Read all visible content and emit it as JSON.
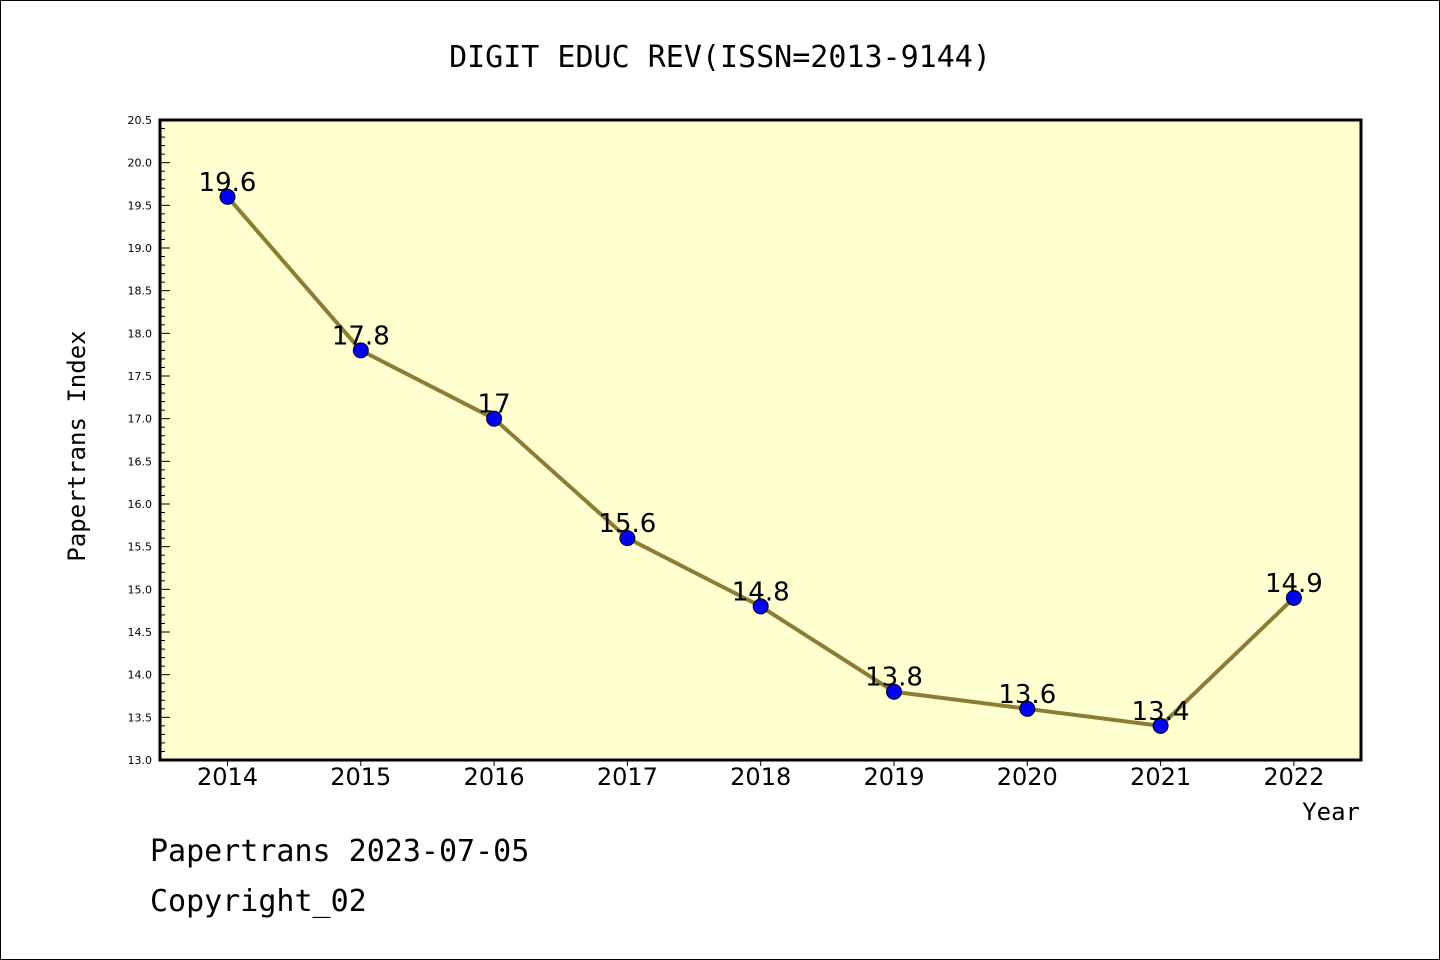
{
  "chart_data": {
    "type": "line",
    "title": "DIGIT EDUC REV(ISSN=2013-9144)",
    "xlabel": "Year",
    "ylabel": "Papertrans Index",
    "categories": [
      "2014",
      "2015",
      "2016",
      "2017",
      "2018",
      "2019",
      "2020",
      "2021",
      "2022"
    ],
    "values": [
      19.6,
      17.8,
      17,
      15.6,
      14.8,
      13.8,
      13.6,
      13.4,
      14.9
    ],
    "data_labels": [
      "19.6",
      "17.8",
      "17",
      "15.6",
      "14.8",
      "13.8",
      "13.6",
      "13.4",
      "14.9"
    ],
    "ylim": [
      13.0,
      20.5
    ],
    "yticks": [
      "13.0",
      "13.5",
      "14.0",
      "14.5",
      "15.0",
      "15.5",
      "16.0",
      "16.5",
      "17.0",
      "17.5",
      "18.0",
      "18.5",
      "19.0",
      "19.5",
      "20.0",
      "20.5"
    ],
    "grid": false,
    "legend": "none",
    "colors": {
      "plot_background": "#ffffd0",
      "line": "#8b7d33",
      "marker": "#0000ff"
    }
  },
  "footer": {
    "line1": "Papertrans 2023-07-05",
    "line2": "Copyright_02"
  }
}
